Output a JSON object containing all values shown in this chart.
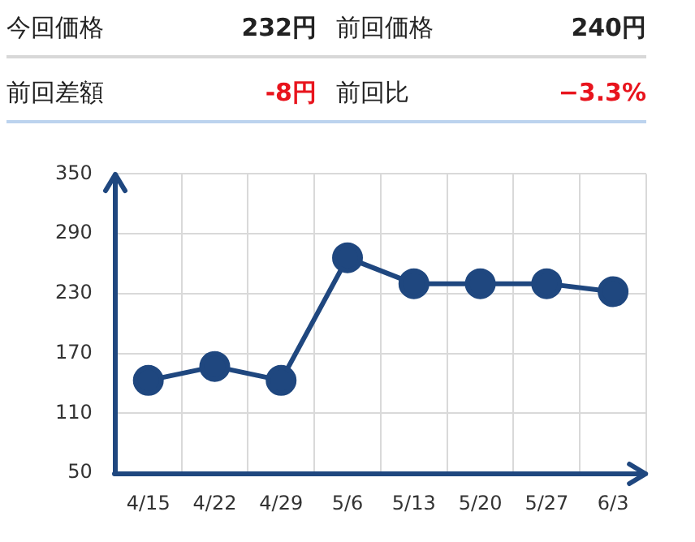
{
  "chart_data": {
    "type": "line",
    "annotations": [
      "今回価格",
      "232円",
      "前回価格",
      "240円",
      "前回差額",
      "-8円",
      "前回比",
      "−3.3%"
    ],
    "categories": [
      "4/15",
      "4/22",
      "4/29",
      "5/6",
      "5/13",
      "5/20",
      "5/27",
      "6/3"
    ],
    "series": [
      {
        "color": "#1f477f",
        "values": [
          143,
          157,
          143,
          266,
          240,
          240,
          240,
          232
        ]
      }
    ],
    "ylim": [
      50,
      350
    ],
    "yticks": [
      50,
      110,
      170,
      230,
      290,
      350
    ],
    "grid": true,
    "legend": false,
    "marker": "circle",
    "line_style": "solid"
  }
}
